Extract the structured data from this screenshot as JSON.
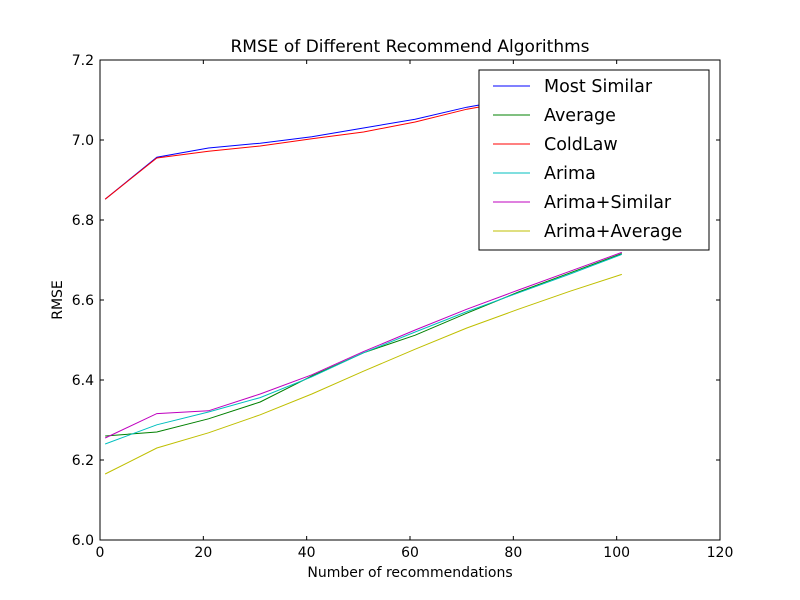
{
  "chart_data": {
    "type": "line",
    "title": "RMSE of Different Recommend Algorithms",
    "xlabel": "Number of recommendations",
    "ylabel": "RMSE",
    "xlim": [
      0,
      120
    ],
    "ylim": [
      6.0,
      7.2
    ],
    "xticks": [
      0,
      20,
      40,
      60,
      80,
      100,
      120
    ],
    "yticks": [
      6.0,
      6.2,
      6.4,
      6.6,
      6.8,
      7.0,
      7.2
    ],
    "xtick_labels": [
      "0",
      "20",
      "40",
      "60",
      "80",
      "100",
      "120"
    ],
    "ytick_labels": [
      "6.0",
      "6.2",
      "6.4",
      "6.6",
      "6.8",
      "7.0",
      "7.2"
    ],
    "grid": false,
    "legend_position": "top-right",
    "x": [
      1,
      11,
      21,
      31,
      41,
      51,
      61,
      71,
      81,
      91,
      101
    ],
    "series": [
      {
        "name": "Most Similar",
        "color": "#0000ff",
        "values": [
          6.852,
          6.957,
          6.98,
          6.992,
          7.008,
          7.03,
          7.052,
          7.082,
          7.105,
          7.13,
          7.155
        ]
      },
      {
        "name": "Average",
        "color": "#008000",
        "values": [
          6.26,
          6.27,
          6.303,
          6.345,
          6.41,
          6.468,
          6.512,
          6.567,
          6.62,
          6.668,
          6.716
        ]
      },
      {
        "name": "ColdLaw",
        "color": "#ff0000",
        "values": [
          6.852,
          6.955,
          6.972,
          6.985,
          7.003,
          7.02,
          7.045,
          7.077,
          7.1,
          7.125,
          7.15
        ]
      },
      {
        "name": "Arima",
        "color": "#00bfbf",
        "values": [
          6.24,
          6.288,
          6.32,
          6.356,
          6.408,
          6.468,
          6.52,
          6.571,
          6.618,
          6.665,
          6.714
        ]
      },
      {
        "name": "Arima+Similar",
        "color": "#bf00bf",
        "values": [
          6.255,
          6.316,
          6.323,
          6.365,
          6.413,
          6.471,
          6.525,
          6.577,
          6.625,
          6.672,
          6.719
        ]
      },
      {
        "name": "Arima+Average",
        "color": "#bfbf00",
        "values": [
          6.165,
          6.23,
          6.268,
          6.313,
          6.365,
          6.422,
          6.477,
          6.53,
          6.577,
          6.622,
          6.664
        ]
      }
    ]
  }
}
